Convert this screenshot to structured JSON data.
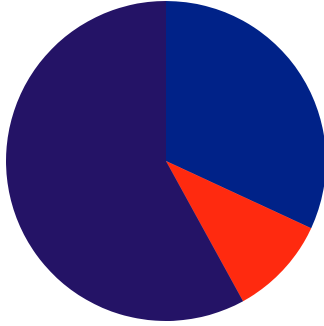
{
  "chart_data": {
    "type": "pie",
    "title": "",
    "legend": "none",
    "start_angle_deg": 0,
    "direction": "clockwise",
    "slices": [
      {
        "value": 31.9,
        "color": "#002288"
      },
      {
        "value": 10.1,
        "color": "#ff2a0f"
      },
      {
        "value": 58.0,
        "color": "#241366"
      }
    ]
  }
}
